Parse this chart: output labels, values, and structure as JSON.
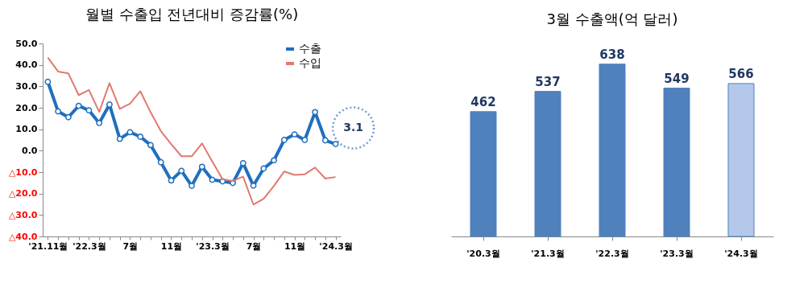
{
  "chart_data": [
    {
      "type": "line",
      "title": "월별 수출입 전년대비 증감률(%)",
      "categories": [
        "'21.11월",
        null,
        null,
        null,
        "'22.3월",
        null,
        null,
        null,
        "7월",
        null,
        null,
        null,
        "11월",
        null,
        null,
        null,
        "'23.3월",
        null,
        null,
        null,
        "7월",
        null,
        null,
        null,
        "11월",
        null,
        null,
        null,
        "'24.3월"
      ],
      "series": [
        {
          "name": "수출",
          "color": "#1f6fbf",
          "marker": "circle",
          "values": [
            32.1,
            18.3,
            15.6,
            20.9,
            18.8,
            12.9,
            21.5,
            5.5,
            8.6,
            6.5,
            2.6,
            -5.4,
            -13.9,
            -9.4,
            -16.4,
            -7.5,
            -13.6,
            -14.3,
            -15.1,
            -5.8,
            -16.3,
            -8.3,
            -4.5,
            5.0,
            7.6,
            5.0,
            18.0,
            4.8,
            3.1
          ]
        },
        {
          "name": "수입",
          "color": "#e07a6f",
          "marker": "none",
          "values": [
            43.4,
            36.9,
            36.0,
            25.9,
            28.3,
            18.1,
            31.5,
            19.5,
            21.9,
            27.7,
            17.9,
            9.1,
            3.1,
            -2.6,
            -2.6,
            3.4,
            -5.0,
            -13.3,
            -14.1,
            -12.1,
            -25.1,
            -22.4,
            -16.4,
            -9.7,
            -11.3,
            -11.0,
            -7.9,
            -13.0,
            -12.3
          ]
        }
      ],
      "ylim": [
        -40,
        50
      ],
      "yticks": [
        {
          "value": -40,
          "label": "△40.0"
        },
        {
          "value": -30,
          "label": "△30.0"
        },
        {
          "value": -20,
          "label": "△20.0"
        },
        {
          "value": -10,
          "label": "△10.0"
        },
        {
          "value": 0,
          "label": "0.0"
        },
        {
          "value": 10,
          "label": "10.0"
        },
        {
          "value": 20,
          "label": "20.0"
        },
        {
          "value": 30,
          "label": "30.0"
        },
        {
          "value": 40,
          "label": "40.0"
        },
        {
          "value": 50,
          "label": "50.0"
        }
      ],
      "annotations": [
        {
          "text": "3.1",
          "x": "'24.3월",
          "y": 3.1
        }
      ],
      "grid": false,
      "legend": "top right"
    },
    {
      "type": "bar",
      "title": "3월 수출액(억 달러)",
      "categories": [
        "'20.3월",
        "'21.3월",
        "'22.3월",
        "'23.3월",
        "'24.3월"
      ],
      "values": [
        462,
        537,
        638,
        549,
        566
      ],
      "colors": [
        "#4f81bd",
        "#4f81bd",
        "#4f81bd",
        "#4f81bd",
        "#b4c8ea"
      ],
      "relative": false,
      "data_labels": true,
      "grid": false,
      "legend": false
    }
  ]
}
